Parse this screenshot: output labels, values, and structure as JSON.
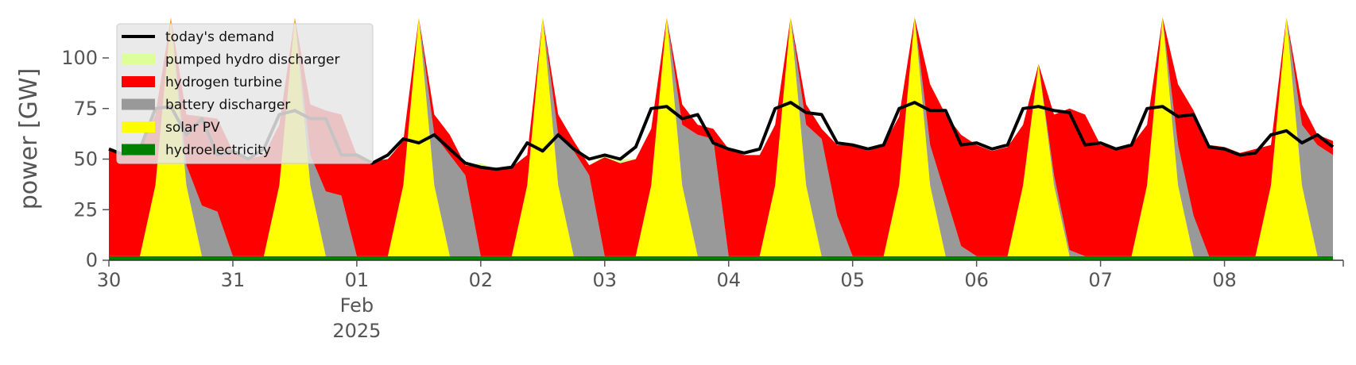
{
  "chart_data": {
    "type": "area",
    "title": "",
    "xlabel": "",
    "ylabel": "power [GW]",
    "ylim": [
      0,
      120
    ],
    "yticks": [
      0,
      25,
      50,
      75,
      100
    ],
    "xlim": [
      "2025-01-30T00:00",
      "2025-02-08T23:00"
    ],
    "x_ticks": [
      {
        "date": "2025-01-30",
        "label": "30"
      },
      {
        "date": "2025-01-31",
        "label": "31"
      },
      {
        "date": "2025-02-01",
        "label": "01",
        "label2": "Feb",
        "label3": "2025"
      },
      {
        "date": "2025-02-02",
        "label": "02"
      },
      {
        "date": "2025-02-03",
        "label": "03"
      },
      {
        "date": "2025-02-04",
        "label": "04"
      },
      {
        "date": "2025-02-05",
        "label": "05"
      },
      {
        "date": "2025-02-06",
        "label": "06"
      },
      {
        "date": "2025-02-07",
        "label": "07"
      },
      {
        "date": "2025-02-08",
        "label": "08"
      }
    ],
    "grid": false,
    "legend_position": "top-left",
    "sample_hours": [
      0,
      3,
      6,
      9,
      12,
      15,
      18,
      21
    ],
    "days": [
      "2025-01-30",
      "2025-01-31",
      "2025-02-01",
      "2025-02-02",
      "2025-02-03",
      "2025-02-04",
      "2025-02-05",
      "2025-02-06",
      "2025-02-07",
      "2025-02-08"
    ],
    "series": [
      {
        "name": "hydroelectricity",
        "color": "#008000",
        "stack": true,
        "values": [
          2,
          2,
          2,
          2,
          2,
          2,
          2,
          2,
          2,
          2,
          2,
          2,
          2,
          2,
          2,
          2,
          2,
          2,
          2,
          2,
          2,
          2,
          2,
          2,
          2,
          2,
          2,
          2,
          2,
          2,
          2,
          2,
          2,
          2,
          2,
          2,
          2,
          2,
          2,
          2,
          2,
          2,
          2,
          2,
          2,
          2,
          2,
          2,
          2,
          2,
          2,
          2,
          2,
          2,
          2,
          2,
          2,
          2,
          2,
          2,
          2,
          2,
          2,
          2,
          2,
          2,
          2,
          2,
          2,
          2,
          2,
          2,
          2,
          2,
          2,
          2,
          2,
          2,
          2,
          2
        ]
      },
      {
        "name": "solar PV",
        "color": "#ffff00",
        "stack": true,
        "values": [
          0,
          0,
          0,
          35,
          118,
          35,
          0,
          0,
          0,
          0,
          0,
          35,
          118,
          35,
          0,
          0,
          0,
          0,
          0,
          35,
          118,
          35,
          0,
          0,
          0,
          0,
          0,
          35,
          118,
          35,
          0,
          0,
          0,
          0,
          0,
          35,
          118,
          35,
          0,
          0,
          0,
          0,
          0,
          35,
          118,
          35,
          0,
          0,
          0,
          0,
          0,
          35,
          118,
          35,
          0,
          0,
          0,
          0,
          0,
          35,
          95,
          35,
          0,
          0,
          0,
          0,
          0,
          35,
          118,
          35,
          0,
          0,
          0,
          0,
          0,
          35,
          118,
          35,
          0,
          0
        ]
      },
      {
        "name": "battery discharger",
        "color": "#999999",
        "stack": true,
        "values": [
          0,
          0,
          0,
          0,
          0,
          10,
          25,
          22,
          0,
          0,
          0,
          0,
          0,
          15,
          32,
          30,
          0,
          0,
          0,
          0,
          0,
          25,
          50,
          40,
          0,
          0,
          0,
          0,
          0,
          25,
          52,
          40,
          0,
          0,
          0,
          0,
          0,
          30,
          60,
          58,
          0,
          0,
          0,
          0,
          0,
          30,
          58,
          20,
          0,
          0,
          0,
          0,
          0,
          20,
          30,
          5,
          0,
          0,
          0,
          0,
          0,
          5,
          3,
          0,
          0,
          0,
          0,
          0,
          0,
          20,
          20,
          0,
          0,
          0,
          0,
          0,
          0,
          30,
          55,
          50
        ]
      },
      {
        "name": "hydrogen turbine",
        "color": "#ff0000",
        "stack": true,
        "values": [
          53,
          50,
          52,
          35,
          0,
          25,
          44,
          46,
          52,
          48,
          50,
          30,
          0,
          25,
          40,
          40,
          50,
          47,
          48,
          22,
          0,
          10,
          10,
          5,
          44,
          43,
          44,
          15,
          0,
          10,
          5,
          5,
          49,
          46,
          48,
          28,
          0,
          10,
          5,
          5,
          53,
          50,
          50,
          30,
          0,
          10,
          5,
          35,
          55,
          52,
          55,
          34,
          0,
          30,
          40,
          55,
          55,
          52,
          54,
          30,
          0,
          30,
          70,
          70,
          55,
          53,
          55,
          30,
          0,
          30,
          52,
          55,
          54,
          51,
          53,
          20,
          0,
          10,
          5,
          7
        ]
      },
      {
        "name": "pumped hydro discharger",
        "color": "#ddff99",
        "stack": true,
        "values": [
          0,
          0,
          0,
          0,
          0,
          0,
          0,
          0,
          0,
          0,
          0,
          0,
          0,
          0,
          0,
          0,
          0,
          0,
          0,
          0,
          0,
          0,
          0,
          0,
          2,
          0,
          0,
          0,
          0,
          0,
          0,
          0,
          1,
          2,
          0,
          0,
          0,
          0,
          0,
          0,
          0,
          0,
          0,
          0,
          0,
          0,
          0,
          0,
          0,
          0,
          0,
          0,
          0,
          0,
          0,
          0,
          0,
          0,
          0,
          0,
          0,
          0,
          0,
          0,
          0,
          0,
          0,
          0,
          0,
          0,
          0,
          0,
          0,
          0,
          0,
          0,
          0,
          0,
          0,
          0
        ]
      },
      {
        "name": "today's demand",
        "color": "#000000",
        "stack": false,
        "values": [
          55,
          52,
          55,
          75,
          76,
          62,
          70,
          52,
          54,
          50,
          55,
          72,
          74,
          70,
          70,
          52,
          52,
          48,
          52,
          60,
          58,
          62,
          55,
          48,
          46,
          45,
          46,
          58,
          54,
          62,
          55,
          50,
          52,
          50,
          56,
          75,
          76,
          70,
          72,
          58,
          55,
          53,
          55,
          75,
          78,
          73,
          72,
          58,
          57,
          55,
          57,
          75,
          78,
          74,
          74,
          57,
          58,
          55,
          57,
          75,
          76,
          74,
          73,
          57,
          58,
          55,
          57,
          75,
          76,
          71,
          72,
          56,
          55,
          52,
          53,
          62,
          64,
          58,
          62,
          56
        ]
      }
    ]
  }
}
